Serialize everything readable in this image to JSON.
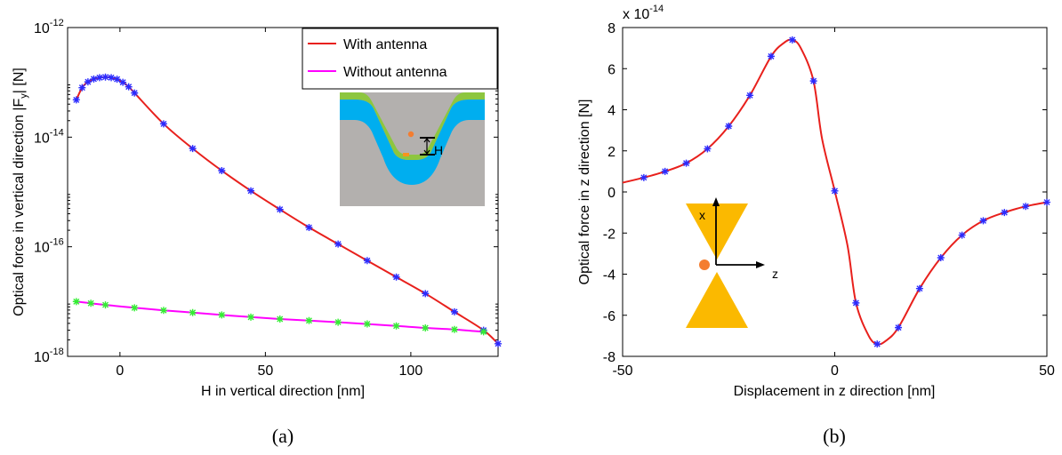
{
  "chart_data": [
    {
      "type": "line",
      "caption": "(a)",
      "xlabel": "H in vertical direction [nm]",
      "ylabel": "Optical force in vertical direction |F",
      "ylabel_sub": "y",
      "ylabel_tail": "| [N]",
      "xlim": [
        -18,
        130
      ],
      "ylim": [
        1e-18,
        1e-12
      ],
      "yscale": "log",
      "xticks": [
        {
          "v": 0,
          "label": "0"
        },
        {
          "v": 50,
          "label": "50"
        },
        {
          "v": 100,
          "label": "100"
        }
      ],
      "yticks": [
        {
          "v": -18,
          "base": "10",
          "exp": "-18"
        },
        {
          "v": -16,
          "base": "10",
          "exp": "-16"
        },
        {
          "v": -14,
          "base": "10",
          "exp": "-14"
        },
        {
          "v": -12,
          "base": "10",
          "exp": "-12"
        }
      ],
      "legend": {
        "position": "top-right"
      },
      "series": [
        {
          "name": "With antenna",
          "color": "#e8201c",
          "marker_color": "#2b2bff",
          "x": [
            -15,
            -13,
            -11,
            -9,
            -7,
            -5,
            -3,
            -1,
            1,
            3,
            5,
            15,
            25,
            35,
            45,
            55,
            65,
            75,
            85,
            95,
            105,
            115,
            125,
            130
          ],
          "y": [
            4.8e-14,
            8e-14,
            1.02e-13,
            1.15e-13,
            1.22e-13,
            1.25e-13,
            1.22e-13,
            1.14e-13,
            1e-13,
            8.3e-14,
            6.4e-14,
            1.75e-14,
            6.2e-15,
            2.45e-15,
            1.05e-15,
            4.8e-16,
            2.25e-16,
            1.12e-16,
            5.6e-17,
            2.8e-17,
            1.4e-17,
            6.5e-18,
            3e-18,
            1.7e-18
          ]
        },
        {
          "name": "Without antenna",
          "color": "#ff00ff",
          "marker_color": "#33ee33",
          "x": [
            -15,
            -10,
            -5,
            5,
            15,
            25,
            35,
            45,
            55,
            65,
            75,
            85,
            95,
            105,
            115,
            125
          ],
          "y": [
            1e-17,
            9.3e-18,
            8.7e-18,
            7.7e-18,
            6.9e-18,
            6.3e-18,
            5.7e-18,
            5.2e-18,
            4.8e-18,
            4.5e-18,
            4.2e-18,
            3.9e-18,
            3.6e-18,
            3.3e-18,
            3.1e-18,
            2.8e-18
          ]
        }
      ],
      "inset": {
        "label": "H"
      }
    },
    {
      "type": "line",
      "caption": "(b)",
      "xlabel": "Displacement in z direction [nm]",
      "ylabel": "Optical force in z direction [N]",
      "multiplier_base": "x 10",
      "multiplier_exp": "-14",
      "xlim": [
        -50,
        50
      ],
      "ylim": [
        -8,
        8
      ],
      "xticks": [
        {
          "v": -50,
          "label": "-50"
        },
        {
          "v": 0,
          "label": "0"
        },
        {
          "v": 50,
          "label": "50"
        }
      ],
      "yticks": [
        {
          "v": -8,
          "label": "-8"
        },
        {
          "v": -6,
          "label": "-6"
        },
        {
          "v": -4,
          "label": "-4"
        },
        {
          "v": -2,
          "label": "-2"
        },
        {
          "v": 0,
          "label": "0"
        },
        {
          "v": 2,
          "label": "2"
        },
        {
          "v": 4,
          "label": "4"
        },
        {
          "v": 6,
          "label": "6"
        },
        {
          "v": 8,
          "label": "8"
        }
      ],
      "series": [
        {
          "color": "#e8201c",
          "marker_color": "#2b2bff",
          "x": [
            -50,
            -45,
            -40,
            -35,
            -30,
            -25,
            -20,
            -15,
            -12,
            -10,
            -8,
            -5,
            -3,
            0,
            3,
            5,
            8,
            10,
            12,
            15,
            20,
            25,
            30,
            35,
            40,
            45,
            50
          ],
          "y": [
            0.45,
            0.7,
            1.0,
            1.4,
            2.1,
            3.2,
            4.7,
            6.6,
            7.25,
            7.4,
            7.0,
            5.4,
            2.6,
            0.05,
            -2.6,
            -5.4,
            -7.0,
            -7.4,
            -7.25,
            -6.6,
            -4.7,
            -3.2,
            -2.1,
            -1.4,
            -1.0,
            -0.7,
            -0.5
          ]
        }
      ],
      "inset": {
        "axis_x_label": "x",
        "axis_z_label": "z"
      }
    }
  ]
}
